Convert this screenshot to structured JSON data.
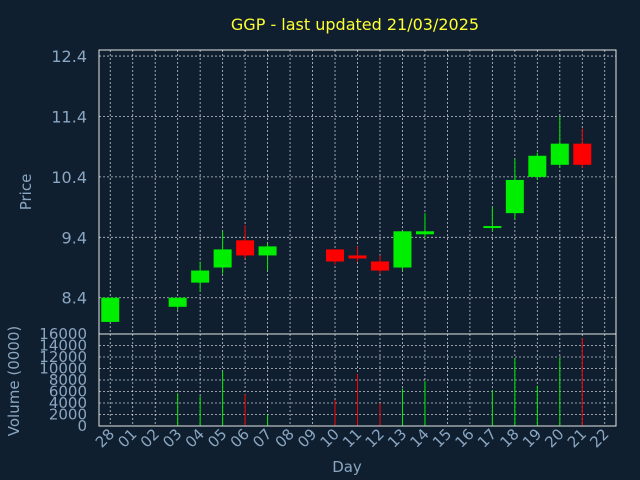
{
  "chart_data": {
    "type": "candlestick",
    "title": "GGP - last updated 21/03/2025",
    "title_color": "#ffff33",
    "text_color": "#8aa6c1",
    "up_color": "#00ee00",
    "down_color": "#ff0000",
    "grid": true,
    "price_panel": {
      "ylabel": "Price",
      "ylim": [
        7.8,
        12.5
      ],
      "yticks": [
        8.4,
        9.4,
        10.4,
        11.4,
        12.4
      ],
      "ytick_labels": [
        "8.4",
        "9.4",
        "10.4",
        "11.4",
        "12.4"
      ]
    },
    "volume_panel": {
      "ylabel": "Volume (0000)",
      "ylim": [
        0,
        16000
      ],
      "yticks": [
        0,
        2000,
        4000,
        6000,
        8000,
        10000,
        12000,
        14000,
        16000
      ],
      "ytick_labels": [
        "0",
        "2000",
        "4000",
        "6000",
        "8000",
        "10000",
        "12000",
        "14000",
        "16000"
      ]
    },
    "xlabel": "Day",
    "x_tick_labels": [
      "28",
      "01",
      "02",
      "03",
      "04",
      "05",
      "06",
      "07",
      "08",
      "09",
      "10",
      "11",
      "12",
      "13",
      "14",
      "15",
      "16",
      "17",
      "18",
      "19",
      "20",
      "21",
      "22"
    ],
    "candles": [
      {
        "x": 0,
        "open": 8.0,
        "high": 8.4,
        "low": 8.0,
        "close": 8.4
      },
      {
        "x": 3,
        "open": 8.25,
        "high": 8.4,
        "low": 8.2,
        "close": 8.4
      },
      {
        "x": 4,
        "open": 8.65,
        "high": 9.0,
        "low": 8.5,
        "close": 8.85
      },
      {
        "x": 5,
        "open": 8.9,
        "high": 9.5,
        "low": 8.8,
        "close": 9.2
      },
      {
        "x": 6,
        "open": 9.35,
        "high": 9.6,
        "low": 9.05,
        "close": 9.1
      },
      {
        "x": 7,
        "open": 9.1,
        "high": 9.3,
        "low": 8.85,
        "close": 9.25
      },
      {
        "x": 10,
        "open": 9.2,
        "high": 9.2,
        "low": 8.95,
        "close": 9.0
      },
      {
        "x": 11,
        "open": 9.1,
        "high": 9.25,
        "low": 9.0,
        "close": 9.05
      },
      {
        "x": 12,
        "open": 9.0,
        "high": 9.1,
        "low": 8.8,
        "close": 8.85
      },
      {
        "x": 13,
        "open": 8.9,
        "high": 9.5,
        "low": 8.85,
        "close": 9.5
      },
      {
        "x": 14,
        "open": 9.45,
        "high": 9.8,
        "low": 9.4,
        "close": 9.5
      },
      {
        "x": 17,
        "open": 9.55,
        "high": 9.9,
        "low": 9.5,
        "close": 9.57
      },
      {
        "x": 18,
        "open": 9.8,
        "high": 10.7,
        "low": 9.7,
        "close": 10.35
      },
      {
        "x": 19,
        "open": 10.4,
        "high": 10.8,
        "low": 10.35,
        "close": 10.75
      },
      {
        "x": 20,
        "open": 10.6,
        "high": 11.4,
        "low": 10.55,
        "close": 10.95
      },
      {
        "x": 21,
        "open": 10.95,
        "high": 11.2,
        "low": 10.55,
        "close": 10.6
      }
    ],
    "volumes": [
      {
        "x": 0,
        "value": 0,
        "dir": "up"
      },
      {
        "x": 3,
        "value": 5700,
        "dir": "up"
      },
      {
        "x": 4,
        "value": 5200,
        "dir": "up"
      },
      {
        "x": 5,
        "value": 9500,
        "dir": "up"
      },
      {
        "x": 6,
        "value": 5500,
        "dir": "down"
      },
      {
        "x": 7,
        "value": 2000,
        "dir": "up"
      },
      {
        "x": 10,
        "value": 4500,
        "dir": "down"
      },
      {
        "x": 11,
        "value": 9000,
        "dir": "down"
      },
      {
        "x": 12,
        "value": 4000,
        "dir": "down"
      },
      {
        "x": 13,
        "value": 6500,
        "dir": "up"
      },
      {
        "x": 14,
        "value": 7800,
        "dir": "up"
      },
      {
        "x": 17,
        "value": 6200,
        "dir": "up"
      },
      {
        "x": 18,
        "value": 11800,
        "dir": "up"
      },
      {
        "x": 19,
        "value": 7000,
        "dir": "up"
      },
      {
        "x": 20,
        "value": 11800,
        "dir": "up"
      },
      {
        "x": 21,
        "value": 15300,
        "dir": "down"
      }
    ]
  }
}
